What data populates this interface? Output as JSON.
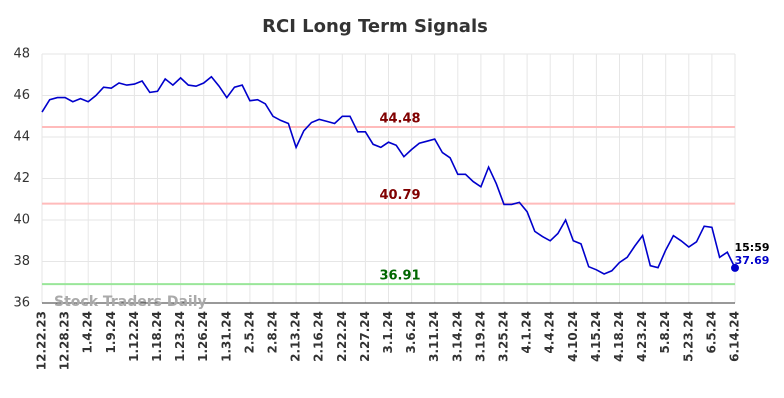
{
  "chart_data": {
    "type": "line",
    "title": "RCI Long Term Signals",
    "categories": [
      "12.22.23",
      null,
      null,
      "12.28.23",
      null,
      null,
      "1.4.24",
      null,
      null,
      "1.9.24",
      null,
      null,
      "1.12.24",
      null,
      null,
      "1.18.24",
      null,
      null,
      "1.23.24",
      null,
      null,
      "1.26.24",
      null,
      null,
      "1.31.24",
      null,
      null,
      "2.5.24",
      null,
      null,
      "2.8.24",
      null,
      null,
      "2.13.24",
      null,
      null,
      "2.16.24",
      null,
      null,
      "2.22.24",
      null,
      null,
      "2.27.24",
      null,
      null,
      "3.1.24",
      null,
      null,
      "3.6.24",
      null,
      null,
      "3.11.24",
      null,
      null,
      "3.14.24",
      null,
      null,
      "3.19.24",
      null,
      null,
      "3.25.24",
      null,
      null,
      "4.1.24",
      null,
      null,
      "4.4.24",
      null,
      null,
      "4.10.24",
      null,
      null,
      "4.15.24",
      null,
      null,
      "4.18.24",
      null,
      null,
      "4.23.24",
      null,
      null,
      "5.8.24",
      null,
      null,
      "5.23.24",
      null,
      null,
      "6.5.24",
      null,
      null,
      "6.14.24"
    ],
    "values": [
      45.2,
      45.8,
      45.9,
      45.9,
      45.7,
      45.85,
      45.7,
      46.0,
      46.4,
      46.35,
      46.6,
      46.5,
      46.55,
      46.7,
      46.15,
      46.2,
      46.8,
      46.5,
      46.85,
      46.5,
      46.45,
      46.6,
      46.9,
      46.45,
      45.9,
      46.4,
      46.5,
      45.75,
      45.8,
      45.6,
      45.0,
      44.8,
      44.65,
      43.5,
      44.3,
      44.7,
      44.85,
      44.75,
      44.65,
      45.0,
      45.0,
      44.25,
      44.25,
      43.65,
      43.5,
      43.75,
      43.6,
      43.05,
      43.4,
      43.7,
      43.8,
      43.9,
      43.25,
      43.0,
      42.2,
      42.2,
      41.85,
      41.6,
      42.55,
      41.75,
      40.75,
      40.75,
      40.85,
      40.4,
      39.45,
      39.2,
      39.0,
      39.35,
      40.0,
      39.0,
      38.85,
      37.75,
      37.6,
      37.4,
      37.55,
      37.95,
      38.2,
      38.75,
      39.25,
      37.8,
      37.7,
      38.55,
      39.25,
      39.0,
      38.7,
      38.95,
      39.7,
      39.65,
      38.2,
      38.45,
      37.69
    ],
    "color": "#0000cc",
    "ylim": [
      36,
      48
    ],
    "yticks": [
      36,
      38,
      40,
      42,
      44,
      46,
      48
    ],
    "grid": true,
    "levels": [
      {
        "value": 44.48,
        "color": "#ffbbbb",
        "label_color": "#800000"
      },
      {
        "value": 40.79,
        "color": "#ffbbbb",
        "label_color": "#800000"
      },
      {
        "value": 36.91,
        "color": "#99e699",
        "label_color": "#006600"
      }
    ],
    "last_time": "15:59",
    "watermark": "Stock Traders Daily"
  }
}
